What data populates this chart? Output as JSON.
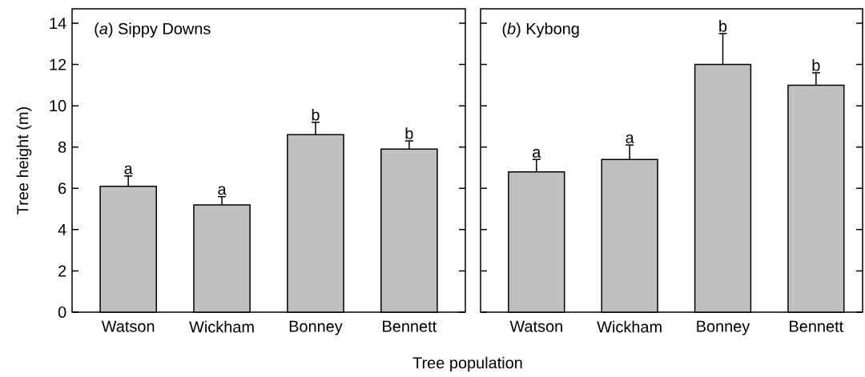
{
  "chart_data": [
    {
      "type": "bar",
      "title": "(*a*) Sippy Downs",
      "xlabel": "Tree population",
      "ylabel": "Tree height (m)",
      "categories": [
        "Watson",
        "Wickham",
        "Bonney",
        "Bennett"
      ],
      "values": [
        6.1,
        5.2,
        8.6,
        7.9
      ],
      "errors": [
        0.5,
        0.4,
        0.6,
        0.4
      ],
      "color": "#c0c0c0",
      "ylim": [
        0,
        14.7
      ],
      "yticks": [
        0,
        2,
        4,
        6,
        8,
        10,
        12,
        14
      ],
      "annotations": [
        {
          "text": "a",
          "x": "Watson",
          "y": 6.6
        },
        {
          "text": "a",
          "x": "Wickham",
          "y": 5.6
        },
        {
          "text": "b",
          "x": "Bonney",
          "y": 9.2
        },
        {
          "text": "b",
          "x": "Bennett",
          "y": 8.3
        }
      ]
    },
    {
      "type": "bar",
      "title": "(*b*) Kybong",
      "categories": [
        "Watson",
        "Wickham",
        "Bonney",
        "Bennett"
      ],
      "values": [
        6.8,
        7.4,
        12.0,
        11.0
      ],
      "errors": [
        0.6,
        0.7,
        1.5,
        0.6
      ],
      "color": "#c0c0c0",
      "ylim": [
        0,
        14.7
      ],
      "yticks": [
        0,
        2,
        4,
        6,
        8,
        10,
        12,
        14
      ],
      "tick_labels": "x",
      "annotations": [
        {
          "text": "a",
          "x": "Watson",
          "y": 7.4
        },
        {
          "text": "a",
          "x": "Wickham",
          "y": 8.1
        },
        {
          "text": "b",
          "x": "Bonney",
          "y": 13.5
        },
        {
          "text": "b",
          "x": "Bennett",
          "y": 11.6
        }
      ]
    }
  ]
}
